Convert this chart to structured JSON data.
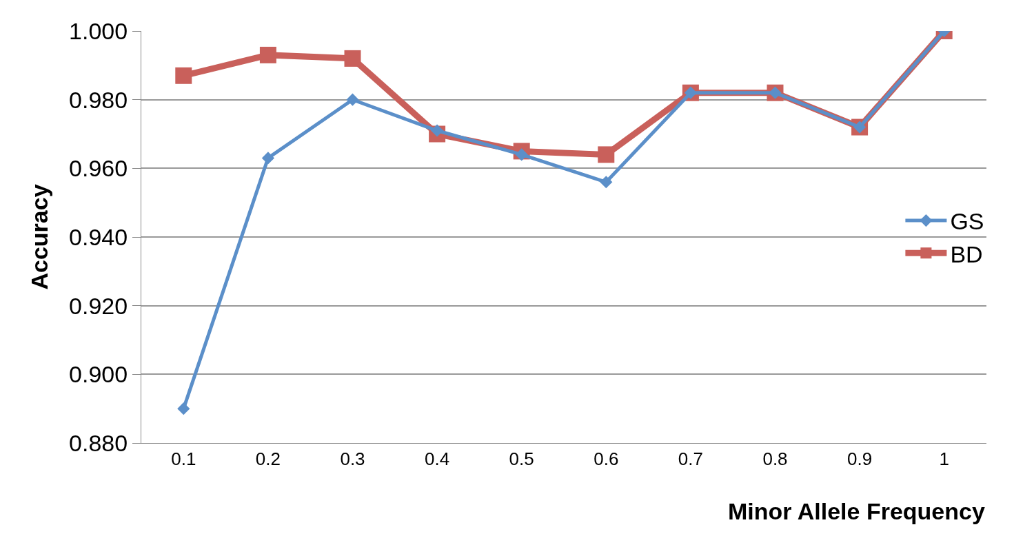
{
  "chart_data": {
    "type": "line",
    "xlabel": "Minor Allele Frequency",
    "ylabel": "Accuracy",
    "categories": [
      "0.1",
      "0.2",
      "0.3",
      "0.4",
      "0.5",
      "0.6",
      "0.7",
      "0.8",
      "0.9",
      "1"
    ],
    "series": [
      {
        "name": "GS",
        "color": "#5b8fc9",
        "marker": "diamond",
        "values": [
          0.89,
          0.963,
          0.98,
          0.971,
          0.964,
          0.956,
          0.982,
          0.982,
          0.972,
          1.0
        ]
      },
      {
        "name": "BD",
        "color": "#c9605b",
        "marker": "square",
        "values": [
          0.987,
          0.993,
          0.992,
          0.97,
          0.965,
          0.964,
          0.982,
          0.982,
          0.972,
          1.0
        ]
      }
    ],
    "ylim": [
      0.88,
      1.0
    ],
    "yticks": [
      {
        "value": 0.88,
        "label": "0.880"
      },
      {
        "value": 0.9,
        "label": "0.900"
      },
      {
        "value": 0.92,
        "label": "0.920"
      },
      {
        "value": 0.94,
        "label": "0.940"
      },
      {
        "value": 0.96,
        "label": "0.960"
      },
      {
        "value": 0.98,
        "label": "0.980"
      },
      {
        "value": 1.0,
        "label": "1.000"
      }
    ],
    "grid": "y",
    "legend": "right",
    "line_style": "solid"
  }
}
